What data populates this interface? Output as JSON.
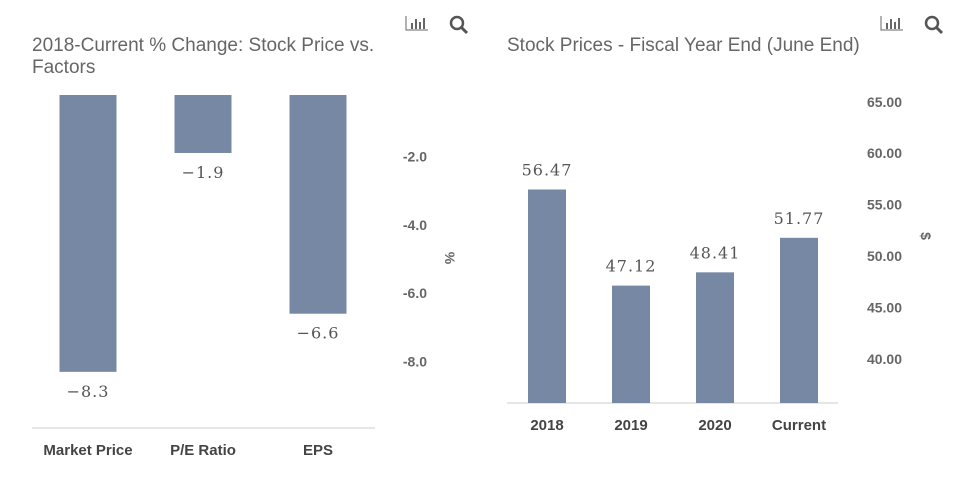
{
  "chart_data": [
    {
      "type": "bar",
      "title": "2018-Current % Change: Stock Price vs. Factors",
      "categories": [
        "Market Price",
        "P/E Ratio",
        "EPS"
      ],
      "values": [
        -8.3,
        -1.9,
        -6.6
      ],
      "data_labels": [
        "−8.3",
        "−1.9",
        "−6.6"
      ],
      "ylabel": "%",
      "yticks": [
        "-2.0",
        "-4.0",
        "-6.0",
        "-8.0"
      ],
      "ytick_values": [
        -2,
        -4,
        -6,
        -8
      ],
      "ylim": [
        -9.5,
        0
      ],
      "y_axis_side": "right",
      "color": "#7788a4",
      "grid": false
    },
    {
      "type": "bar",
      "title": "Stock Prices - Fiscal Year End (June End)",
      "categories": [
        "2018",
        "2019",
        "2020",
        "Current"
      ],
      "values": [
        56.47,
        47.12,
        48.41,
        51.77
      ],
      "data_labels": [
        "56.47",
        "47.12",
        "48.41",
        "51.77"
      ],
      "ylabel": "$",
      "yticks": [
        "65.00",
        "60.00",
        "55.00",
        "50.00",
        "45.00",
        "40.00"
      ],
      "ytick_values": [
        65,
        60,
        55,
        50,
        45,
        40
      ],
      "ylim": [
        35.7,
        66
      ],
      "y_axis_side": "right",
      "color": "#7788a4",
      "grid": false
    }
  ],
  "icons": {
    "chart": "bar-chart-icon",
    "zoom": "search-icon"
  }
}
